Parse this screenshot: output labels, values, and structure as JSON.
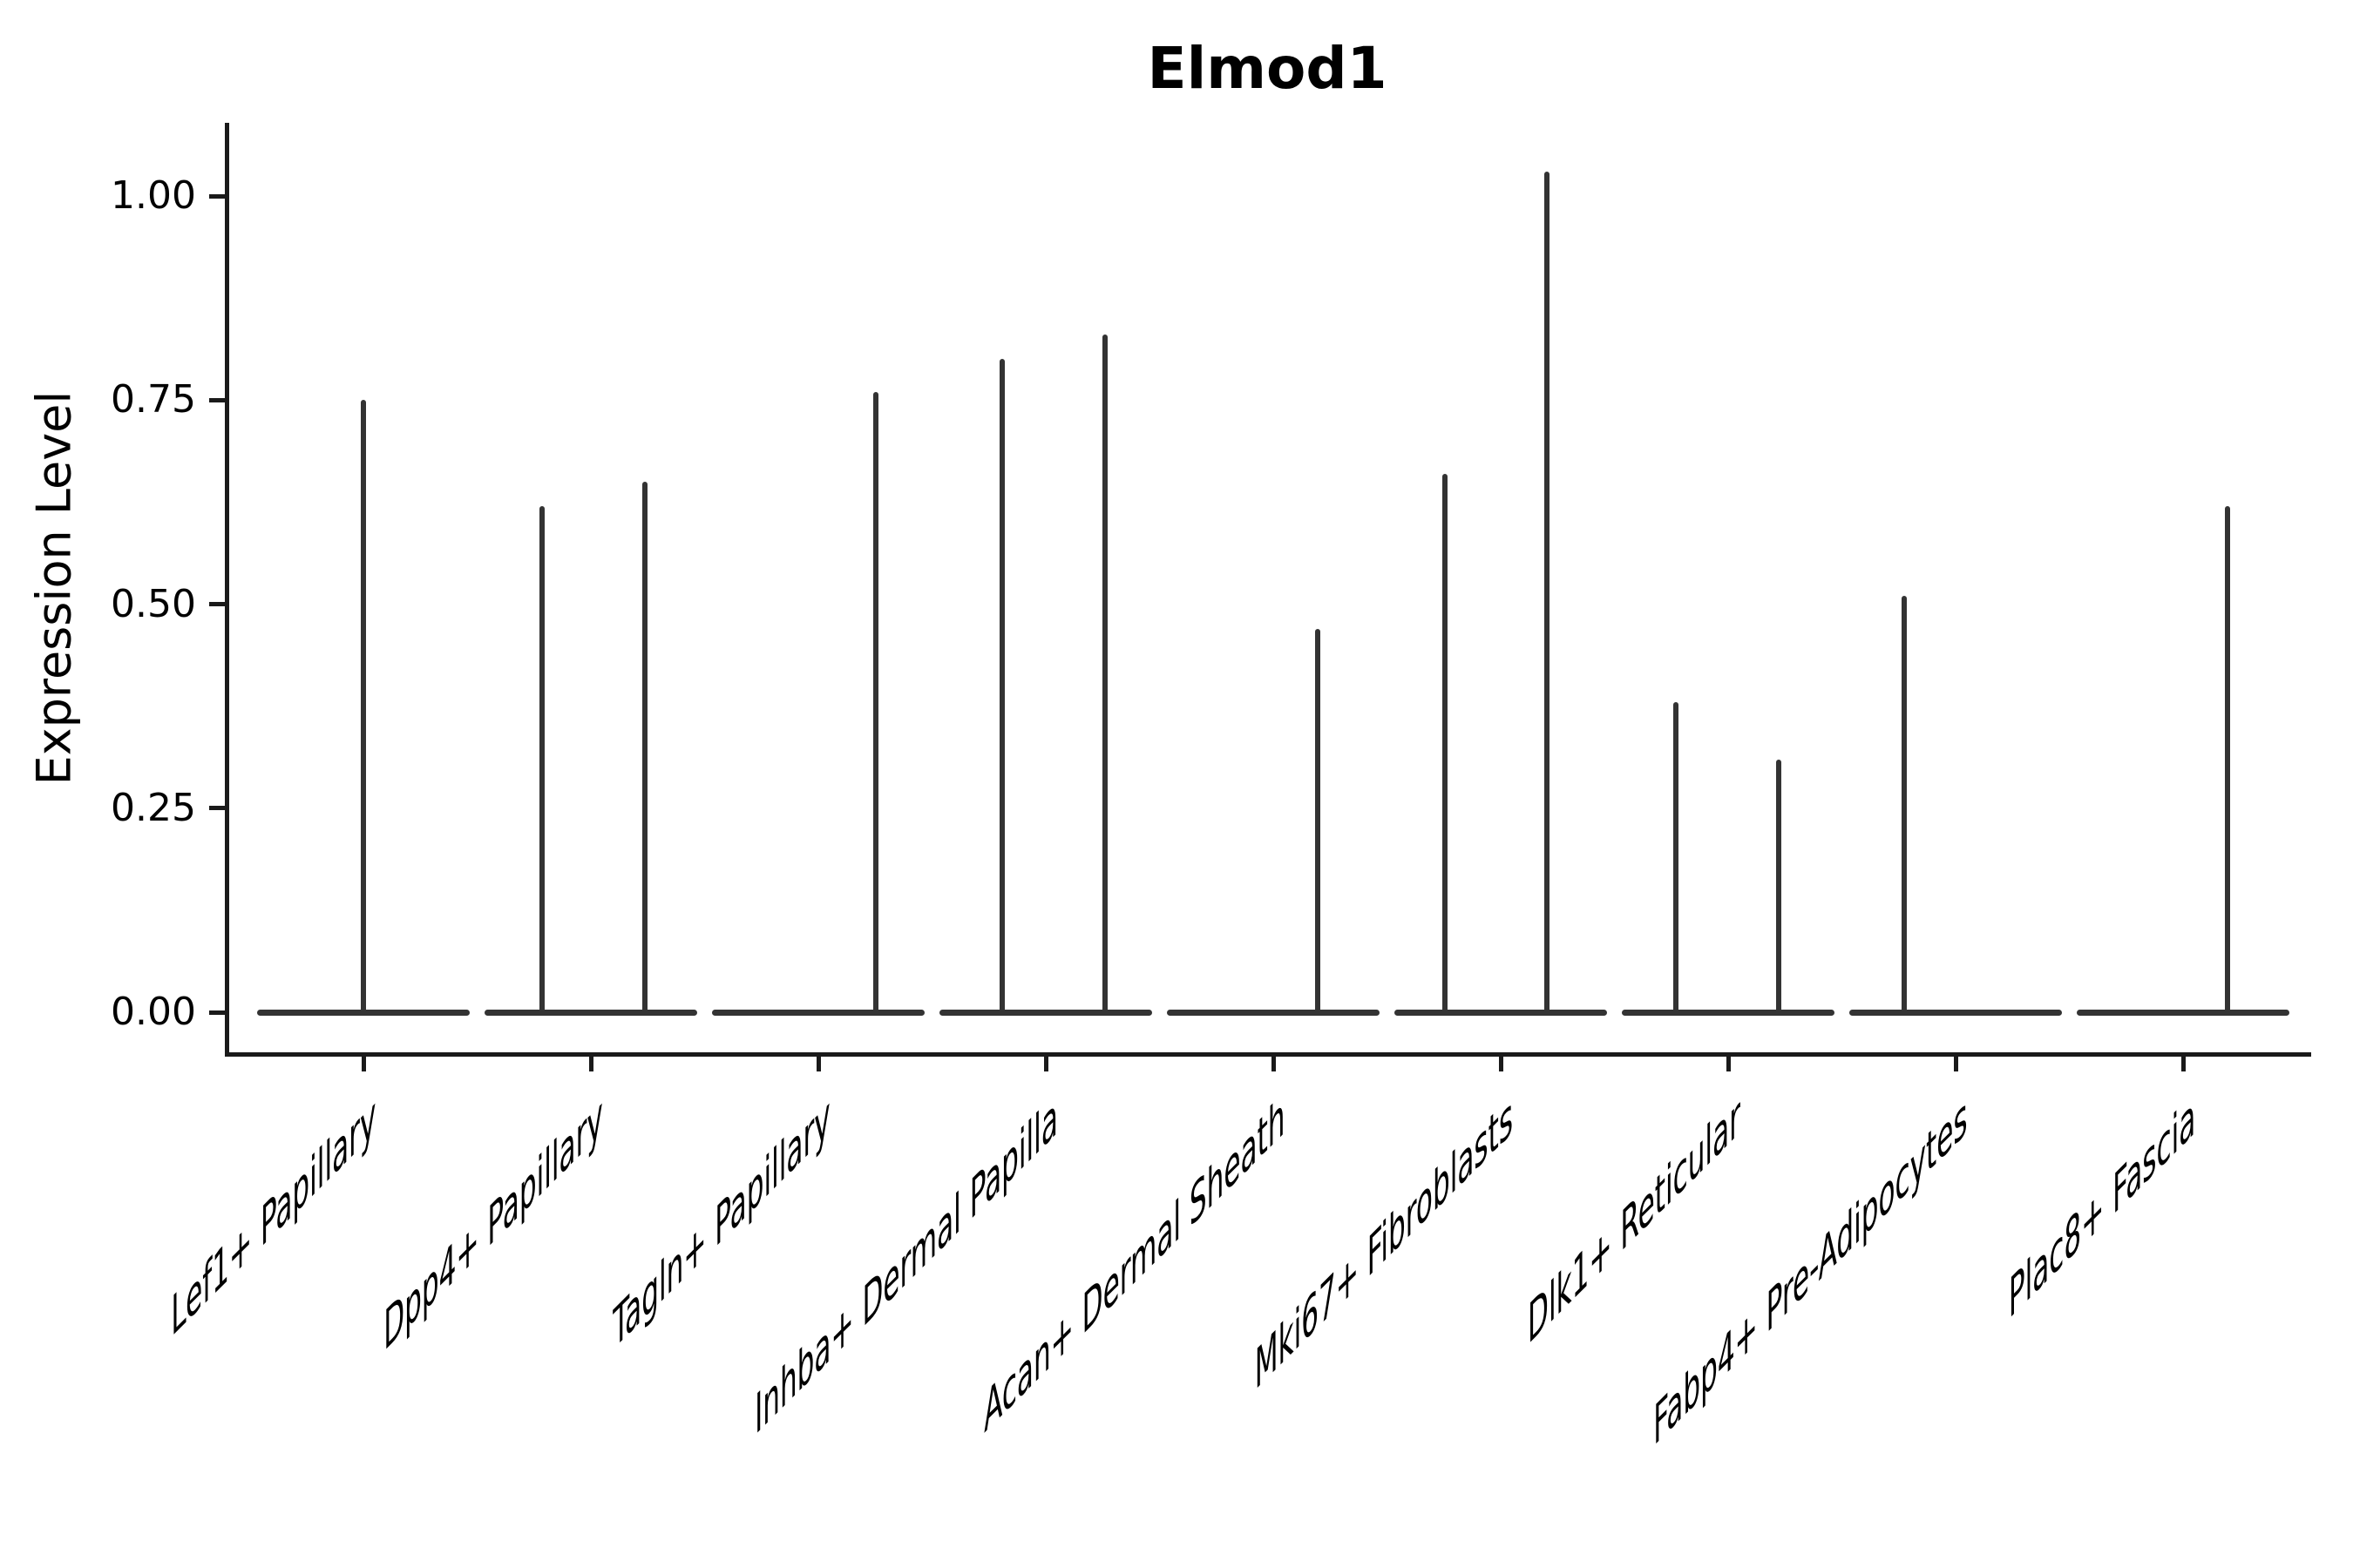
{
  "title": "Elmod1",
  "y_axis": {
    "label": "Expression Level",
    "ticks": [
      {
        "label": "0.00",
        "value": 0.0
      },
      {
        "label": "0.25",
        "value": 0.25
      },
      {
        "label": "0.50",
        "value": 0.5
      },
      {
        "label": "0.75",
        "value": 0.75
      },
      {
        "label": "1.00",
        "value": 1.0
      }
    ]
  },
  "chart_data": {
    "type": "violin",
    "title": "Elmod1",
    "xlabel": "",
    "ylabel": "Expression Level",
    "ylim": [
      -0.05,
      1.09
    ],
    "yticks": [
      0.0,
      0.25,
      0.5,
      0.75,
      1.0
    ],
    "grid": false,
    "legend": "none",
    "background": "#ffffff",
    "categories": [
      "Lef1+ Papillary",
      "Dpp4+ Papillary",
      "Tagln+ Papillary",
      "Inhba+ Dermal Papilla",
      "Acan+ Dermal Sheath",
      "Mki67+ Fibroblasts",
      "Dlk1+ Reticular",
      "Fabp4+ Pre-Adipocytes",
      "Plac8+ Fascia"
    ],
    "series": [
      {
        "name": "Lef1+ Papillary",
        "base_value": 0.0,
        "spikes": [
          {
            "dx": 0.0,
            "value": 0.75
          }
        ]
      },
      {
        "name": "Dpp4+ Papillary",
        "base_value": 0.0,
        "spikes": [
          {
            "dx": -0.215,
            "value": 0.62
          },
          {
            "dx": 0.238,
            "value": 0.65
          }
        ]
      },
      {
        "name": "Tagln+ Papillary",
        "base_value": 0.0,
        "spikes": [
          {
            "dx": 0.253,
            "value": 0.76
          }
        ]
      },
      {
        "name": "Inhba+ Dermal Papilla",
        "base_value": 0.0,
        "spikes": [
          {
            "dx": -0.192,
            "value": 0.8
          },
          {
            "dx": 0.261,
            "value": 0.83
          }
        ]
      },
      {
        "name": "Acan+ Dermal Sheath",
        "base_value": 0.0,
        "spikes": [
          {
            "dx": 0.195,
            "value": 0.47
          }
        ]
      },
      {
        "name": "Mki67+ Fibroblasts",
        "base_value": 0.0,
        "spikes": [
          {
            "dx": -0.245,
            "value": 0.66
          },
          {
            "dx": 0.203,
            "value": 1.03
          }
        ]
      },
      {
        "name": "Dlk1+ Reticular",
        "base_value": 0.0,
        "spikes": [
          {
            "dx": -0.23,
            "value": 0.38
          },
          {
            "dx": 0.222,
            "value": 0.31
          }
        ]
      },
      {
        "name": "Fabp4+ Pre-Adipocytes",
        "base_value": 0.0,
        "spikes": [
          {
            "dx": -0.226,
            "value": 0.51
          }
        ]
      },
      {
        "name": "Plac8+ Fascia",
        "base_value": 0.0,
        "spikes": [
          {
            "dx": 0.195,
            "value": 0.62
          }
        ]
      }
    ],
    "colors": {
      "violin": "#333333",
      "axis": "#1a1a1a",
      "text": "#000000",
      "background": "#ffffff"
    }
  }
}
